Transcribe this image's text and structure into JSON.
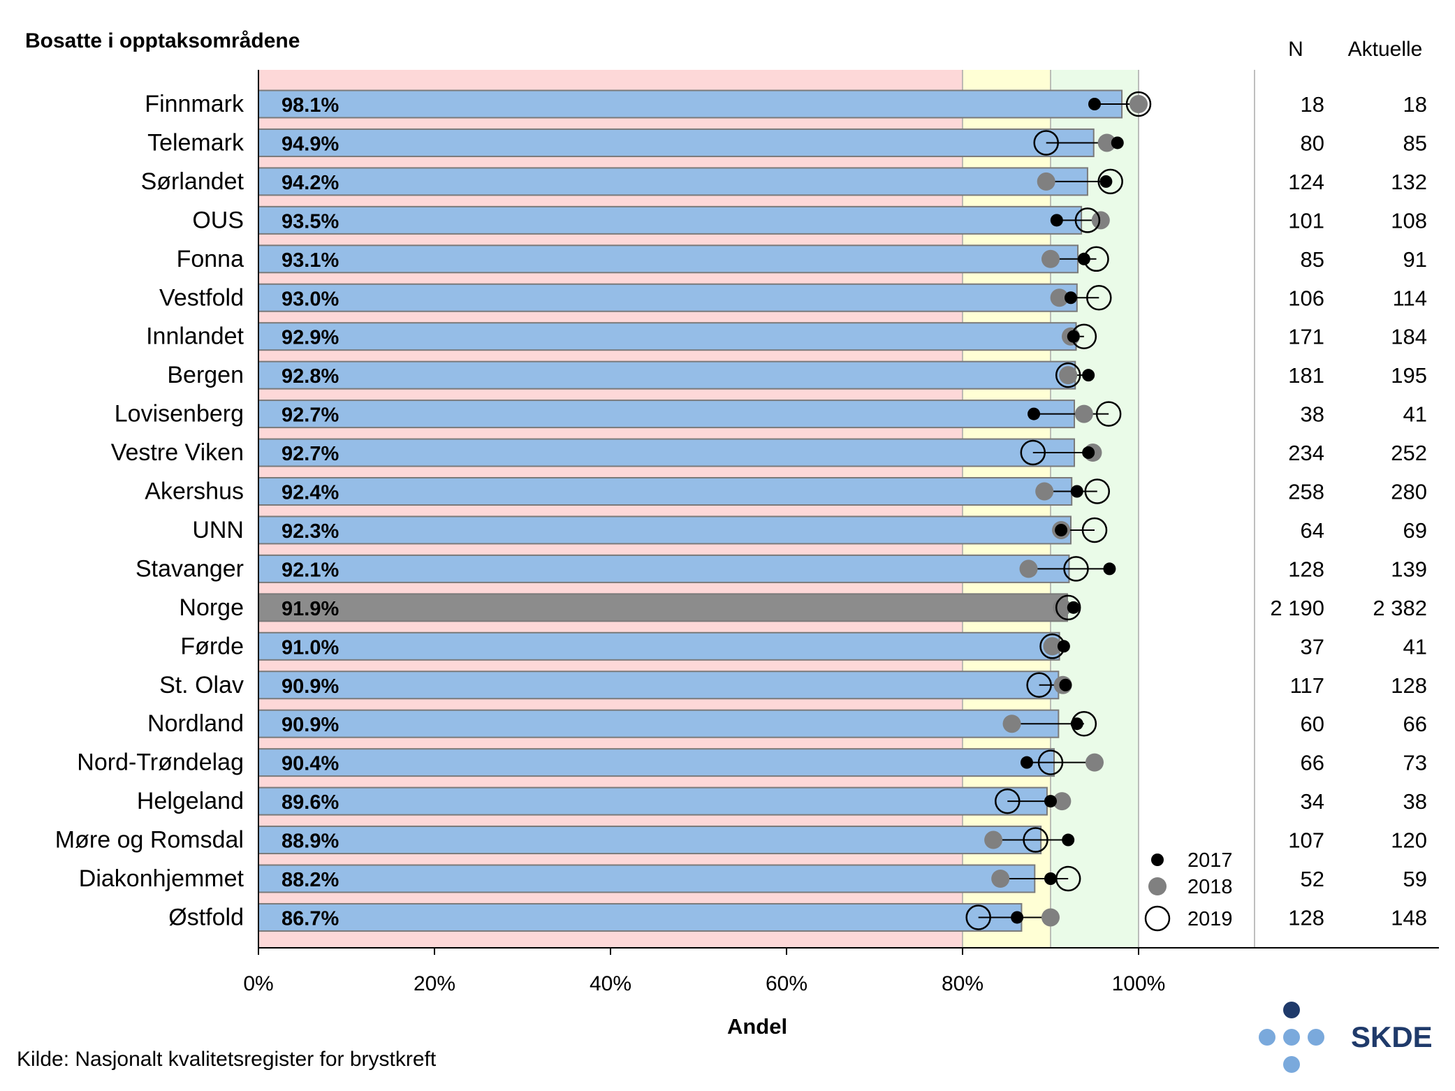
{
  "chart_data": {
    "type": "bar",
    "title": "Bosatte i opptaksområdene",
    "xlabel": "Andel",
    "source": "Kilde: Nasjonalt kvalitetsregister for brystkreft",
    "logo_text": "SKDE",
    "col_headers": {
      "n": "N",
      "aktuelle": "Aktuelle"
    },
    "xlim": [
      0,
      100
    ],
    "xticks": [
      0,
      20,
      40,
      60,
      80,
      100
    ],
    "xtick_labels": [
      "0%",
      "20%",
      "40%",
      "60%",
      "80%",
      "100%"
    ],
    "zones": [
      {
        "from": 0,
        "to": 80,
        "color": "#fdd8d8"
      },
      {
        "from": 80,
        "to": 90,
        "color": "#ffffd5"
      },
      {
        "from": 90,
        "to": 100,
        "color": "#eafbe8"
      }
    ],
    "bar_color": "#95bde7",
    "total_bar_color": "#8c8c8c",
    "legend": [
      {
        "label": "2017",
        "style": "filled-black"
      },
      {
        "label": "2018",
        "style": "filled-grey"
      },
      {
        "label": "2019",
        "style": "open-circle"
      }
    ],
    "rows": [
      {
        "name": "Finnmark",
        "value": 98.1,
        "label": "98.1%",
        "y2017": 95.0,
        "y2018": 100.0,
        "y2019": 100.0,
        "n": "18",
        "aktuelle": "18"
      },
      {
        "name": "Telemark",
        "value": 94.9,
        "label": "94.9%",
        "y2017": 97.6,
        "y2018": 96.4,
        "y2019": 89.5,
        "n": "80",
        "aktuelle": "85"
      },
      {
        "name": "Sørlandet",
        "value": 94.2,
        "label": "94.2%",
        "y2017": 96.3,
        "y2018": 89.5,
        "y2019": 96.8,
        "n": "124",
        "aktuelle": "132"
      },
      {
        "name": "OUS",
        "value": 93.5,
        "label": "93.5%",
        "y2017": 90.7,
        "y2018": 95.7,
        "y2019": 94.2,
        "n": "101",
        "aktuelle": "108"
      },
      {
        "name": "Fonna",
        "value": 93.1,
        "label": "93.1%",
        "y2017": 93.8,
        "y2018": 90.0,
        "y2019": 95.2,
        "n": "85",
        "aktuelle": "91"
      },
      {
        "name": "Vestfold",
        "value": 93.0,
        "label": "93.0%",
        "y2017": 92.3,
        "y2018": 91.0,
        "y2019": 95.5,
        "n": "106",
        "aktuelle": "114"
      },
      {
        "name": "Innlandet",
        "value": 92.9,
        "label": "92.9%",
        "y2017": 92.6,
        "y2018": 92.3,
        "y2019": 93.8,
        "n": "171",
        "aktuelle": "184"
      },
      {
        "name": "Bergen",
        "value": 92.8,
        "label": "92.8%",
        "y2017": 94.3,
        "y2018": 92.0,
        "y2019": 92.0,
        "n": "181",
        "aktuelle": "195"
      },
      {
        "name": "Lovisenberg",
        "value": 92.7,
        "label": "92.7%",
        "y2017": 88.1,
        "y2018": 93.8,
        "y2019": 96.6,
        "n": "38",
        "aktuelle": "41"
      },
      {
        "name": "Vestre Viken",
        "value": 92.7,
        "label": "92.7%",
        "y2017": 94.3,
        "y2018": 94.8,
        "y2019": 88.0,
        "n": "234",
        "aktuelle": "252"
      },
      {
        "name": "Akershus",
        "value": 92.4,
        "label": "92.4%",
        "y2017": 93.0,
        "y2018": 89.3,
        "y2019": 95.3,
        "n": "258",
        "aktuelle": "280"
      },
      {
        "name": "UNN",
        "value": 92.3,
        "label": "92.3%",
        "y2017": 91.2,
        "y2018": 91.2,
        "y2019": 95.0,
        "n": "64",
        "aktuelle": "69"
      },
      {
        "name": "Stavanger",
        "value": 92.1,
        "label": "92.1%",
        "y2017": 96.7,
        "y2018": 87.5,
        "y2019": 92.9,
        "n": "128",
        "aktuelle": "139"
      },
      {
        "name": "Norge",
        "value": 91.9,
        "label": "91.9%",
        "y2017": 92.6,
        "y2018": 91.3,
        "y2019": 92.0,
        "n": "2 190",
        "aktuelle": "2 382",
        "total": true
      },
      {
        "name": "Førde",
        "value": 91.0,
        "label": "91.0%",
        "y2017": 91.5,
        "y2018": 90.2,
        "y2019": 90.2,
        "n": "37",
        "aktuelle": "41"
      },
      {
        "name": "St. Olav",
        "value": 90.9,
        "label": "90.9%",
        "y2017": 91.7,
        "y2018": 91.4,
        "y2019": 88.7,
        "n": "117",
        "aktuelle": "128"
      },
      {
        "name": "Nordland",
        "value": 90.9,
        "label": "90.9%",
        "y2017": 93.0,
        "y2018": 85.6,
        "y2019": 93.8,
        "n": "60",
        "aktuelle": "66"
      },
      {
        "name": "Nord-Trøndelag",
        "value": 90.4,
        "label": "90.4%",
        "y2017": 87.3,
        "y2018": 95.0,
        "y2019": 90.0,
        "n": "66",
        "aktuelle": "73"
      },
      {
        "name": "Helgeland",
        "value": 89.6,
        "label": "89.6%",
        "y2017": 90.0,
        "y2018": 91.3,
        "y2019": 85.1,
        "n": "34",
        "aktuelle": "38"
      },
      {
        "name": "Møre og Romsdal",
        "value": 88.9,
        "label": "88.9%",
        "y2017": 92.0,
        "y2018": 83.5,
        "y2019": 88.3,
        "n": "107",
        "aktuelle": "120"
      },
      {
        "name": "Diakonhjemmet",
        "value": 88.2,
        "label": "88.2%",
        "y2017": 90.0,
        "y2018": 84.3,
        "y2019": 92.0,
        "n": "52",
        "aktuelle": "59"
      },
      {
        "name": "Østfold",
        "value": 86.7,
        "label": "86.7%",
        "y2017": 86.2,
        "y2018": 90.0,
        "y2019": 81.8,
        "n": "128",
        "aktuelle": "148"
      }
    ]
  }
}
